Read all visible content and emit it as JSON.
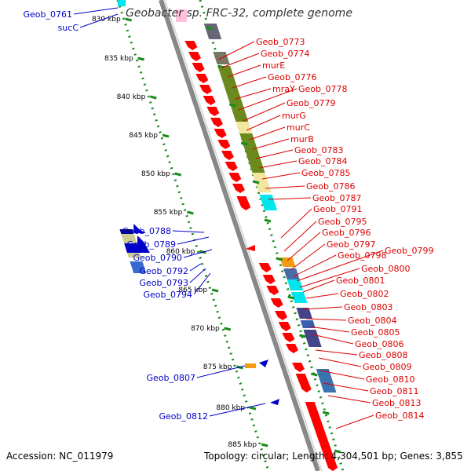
{
  "title": "Geobacter sp. FRC-32, complete genome",
  "accession": "Accession: NC_011979",
  "topology": "Topology: circular; Length: 4,304,501 bp; Genes: 3,855",
  "colors": {
    "left_labels": "#0000cc",
    "right_labels": "#dd0000",
    "backbone": "#888888",
    "ticks": "#1a8a1a",
    "forward_gene": "#ff0000",
    "reverse_gene": "#0000cc"
  },
  "scale_labels": [
    "830 kbp",
    "835 kbp",
    "840 kbp",
    "845 kbp",
    "850 kbp",
    "855 kbp",
    "860 kbp",
    "865 kbp",
    "870 kbp",
    "875 kbp",
    "880 kbp",
    "885 kbp"
  ],
  "left_labels": [
    "Geob_0761",
    "sucC",
    "Geob_0788",
    "Geob_0789",
    "Geob_0790",
    "Geob_0792",
    "Geob_0793",
    "Geob_0794",
    "Geob_0807",
    "Geob_0812"
  ],
  "right_labels": [
    "Geob_0773",
    "Geob_0774",
    "murE",
    "Geob_0776",
    "mraY",
    "Geob_0778",
    "Geob_0779",
    "murG",
    "murC",
    "murB",
    "Geob_0783",
    "Geob_0784",
    "Geob_0785",
    "Geob_0786",
    "Geob_0787",
    "Geob_0791",
    "Geob_0795",
    "Geob_0796",
    "Geob_0797",
    "Geob_0798",
    "Geob_0799",
    "Geob_0800",
    "Geob_0801",
    "Geob_0802",
    "Geob_0803",
    "Geob_0804",
    "Geob_0805",
    "Geob_0806",
    "Geob_0808",
    "Geob_0809",
    "Geob_0810",
    "Geob_0811",
    "Geob_0813",
    "Geob_0814"
  ]
}
